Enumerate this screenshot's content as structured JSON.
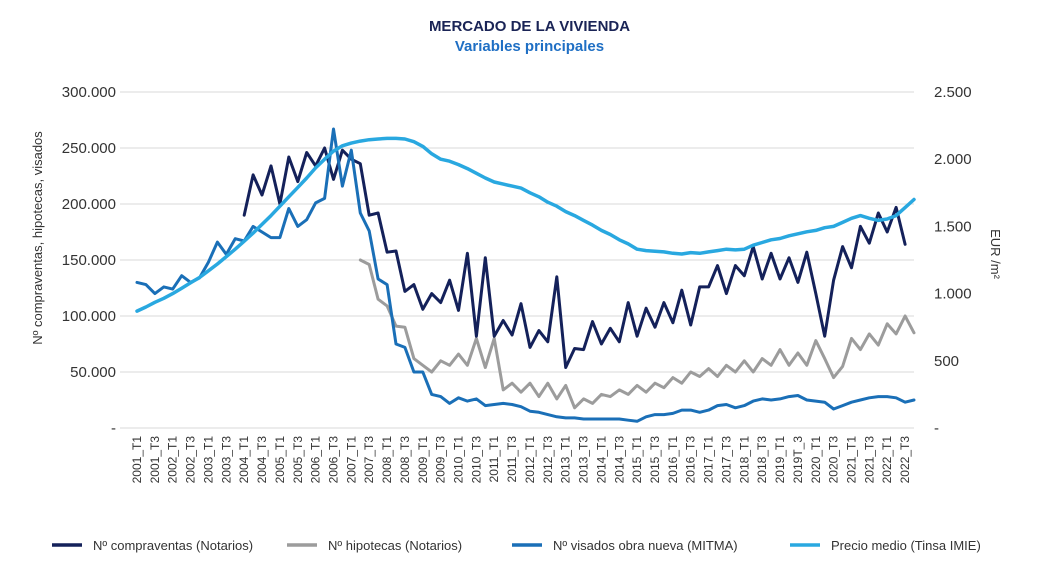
{
  "chart_data": {
    "type": "line",
    "title": "MERCADO DE LA VIVIENDA",
    "subtitle": "Variables principales",
    "ylabel": "Nº compraventas, hipotecas, visados",
    "y2label": "EUR /m²",
    "ylim": [
      0,
      300000
    ],
    "y2lim": [
      0,
      2500
    ],
    "yticks": [
      "-",
      "50.000",
      "100.000",
      "150.000",
      "200.000",
      "250.000",
      "300.000"
    ],
    "y2ticks": [
      "-",
      "500",
      "1.000",
      "1.500",
      "2.000",
      "2.500"
    ],
    "xticks": [
      "2001_T1",
      "2001_T3",
      "2002_T1",
      "2002_T3",
      "2003_T1",
      "2003_T3",
      "2004_T1",
      "2004_T3",
      "2005_T1",
      "2005_T3",
      "2006_T1",
      "2006_T3",
      "2007_T1",
      "2007_T3",
      "2008_T1",
      "2008_T3",
      "2009_T1",
      "2009_T3",
      "2010_T1",
      "2010_T3",
      "2011_T1",
      "2011_T3",
      "2012_T1",
      "2012_T3",
      "2013_T1",
      "2013_T3",
      "2014_T1",
      "2014_T3",
      "2015_T1",
      "2015_T3",
      "2016_T1",
      "2016_T3",
      "2017_T1",
      "2017_T3",
      "2018_T1",
      "2018_T3",
      "2019_T1",
      "2019T_3",
      "2020_T1",
      "2020_T3",
      "2021_T1",
      "2021_T3",
      "2022_T1",
      "2022_T3"
    ],
    "n_periods": 88,
    "series": [
      {
        "name": "Nº compraventas (Notarios)",
        "color": "#14215a",
        "axis": "left",
        "start": 12,
        "values": [
          190000,
          226000,
          208000,
          234000,
          200000,
          242000,
          220000,
          246000,
          234000,
          250000,
          222000,
          248000,
          240000,
          236000,
          190000,
          192000,
          157000,
          158000,
          122000,
          128000,
          106000,
          120000,
          112000,
          132000,
          105000,
          156000,
          82000,
          152000,
          82000,
          96000,
          83000,
          111000,
          72000,
          87000,
          77000,
          135000,
          54000,
          71000,
          70000,
          95000,
          75000,
          89000,
          77000,
          112000,
          82000,
          107000,
          90000,
          112000,
          94000,
          123000,
          92000,
          126000,
          126000,
          145000,
          120000,
          145000,
          136000,
          162000,
          133000,
          156000,
          133000,
          152000,
          130000,
          157000,
          120000,
          82000,
          132000,
          162000,
          143000,
          180000,
          165000,
          192000,
          175000,
          197000,
          164000
        ],
        "values_note": "from 2004_T1 onward"
      },
      {
        "name": "Nº hipotecas (Notarios)",
        "color": "#9c9c9c",
        "axis": "left",
        "start": 25,
        "values": [
          150000,
          146000,
          115000,
          109000,
          91000,
          90000,
          62000,
          56000,
          50000,
          60000,
          56000,
          66000,
          56000,
          80000,
          54000,
          80000,
          34000,
          40000,
          32000,
          40000,
          28000,
          40000,
          26000,
          38000,
          18000,
          26000,
          22000,
          30000,
          28000,
          34000,
          30000,
          38000,
          32000,
          40000,
          36000,
          45000,
          40000,
          50000,
          46000,
          53000,
          46000,
          56000,
          50000,
          60000,
          50000,
          62000,
          56000,
          70000,
          56000,
          67000,
          56000,
          78000,
          62000,
          45000,
          55000,
          80000,
          70000,
          84000,
          74000,
          93000,
          84000,
          100000,
          85000
        ]
      },
      {
        "name": "Nº visados obra nueva (MITMA)",
        "color": "#1a6fb7",
        "axis": "left",
        "start": 0,
        "values": [
          130000,
          128000,
          120000,
          126000,
          124000,
          136000,
          130000,
          134000,
          148000,
          166000,
          155000,
          169000,
          167000,
          180000,
          175000,
          170000,
          170000,
          196000,
          180000,
          186000,
          201000,
          205000,
          267000,
          216000,
          248000,
          192000,
          176000,
          133000,
          128000,
          75000,
          72000,
          50000,
          50000,
          30000,
          28000,
          22000,
          27000,
          24000,
          26000,
          20000,
          21000,
          22000,
          21000,
          19000,
          15000,
          14000,
          12000,
          10000,
          9000,
          9000,
          8000,
          8000,
          8000,
          8000,
          8000,
          7000,
          6000,
          10000,
          12000,
          12000,
          13000,
          16000,
          16000,
          14000,
          16000,
          20000,
          21000,
          18000,
          20000,
          24000,
          26000,
          25000,
          26000,
          28000,
          29000,
          25000,
          24000,
          23000,
          17000,
          20000,
          23000,
          25000,
          27000,
          28000,
          28000,
          27000,
          23000,
          25000
        ]
      },
      {
        "name": "Precio medio (Tinsa IMIE)",
        "color": "#29a8e0",
        "axis": "right",
        "start": 0,
        "values": [
          870,
          900,
          935,
          965,
          1000,
          1040,
          1080,
          1120,
          1170,
          1220,
          1275,
          1330,
          1390,
          1450,
          1515,
          1580,
          1650,
          1720,
          1790,
          1860,
          1935,
          2000,
          2060,
          2100,
          2120,
          2135,
          2145,
          2150,
          2155,
          2155,
          2150,
          2130,
          2095,
          2040,
          2000,
          1985,
          1960,
          1930,
          1895,
          1860,
          1830,
          1815,
          1800,
          1785,
          1750,
          1720,
          1680,
          1650,
          1610,
          1580,
          1545,
          1510,
          1470,
          1440,
          1400,
          1370,
          1330,
          1320,
          1315,
          1310,
          1300,
          1295,
          1305,
          1300,
          1310,
          1320,
          1330,
          1325,
          1330,
          1360,
          1380,
          1400,
          1410,
          1430,
          1445,
          1460,
          1470,
          1490,
          1500,
          1530,
          1560,
          1580,
          1560,
          1545,
          1555,
          1580,
          1640,
          1700
        ]
      }
    ],
    "legend": "bottom"
  }
}
